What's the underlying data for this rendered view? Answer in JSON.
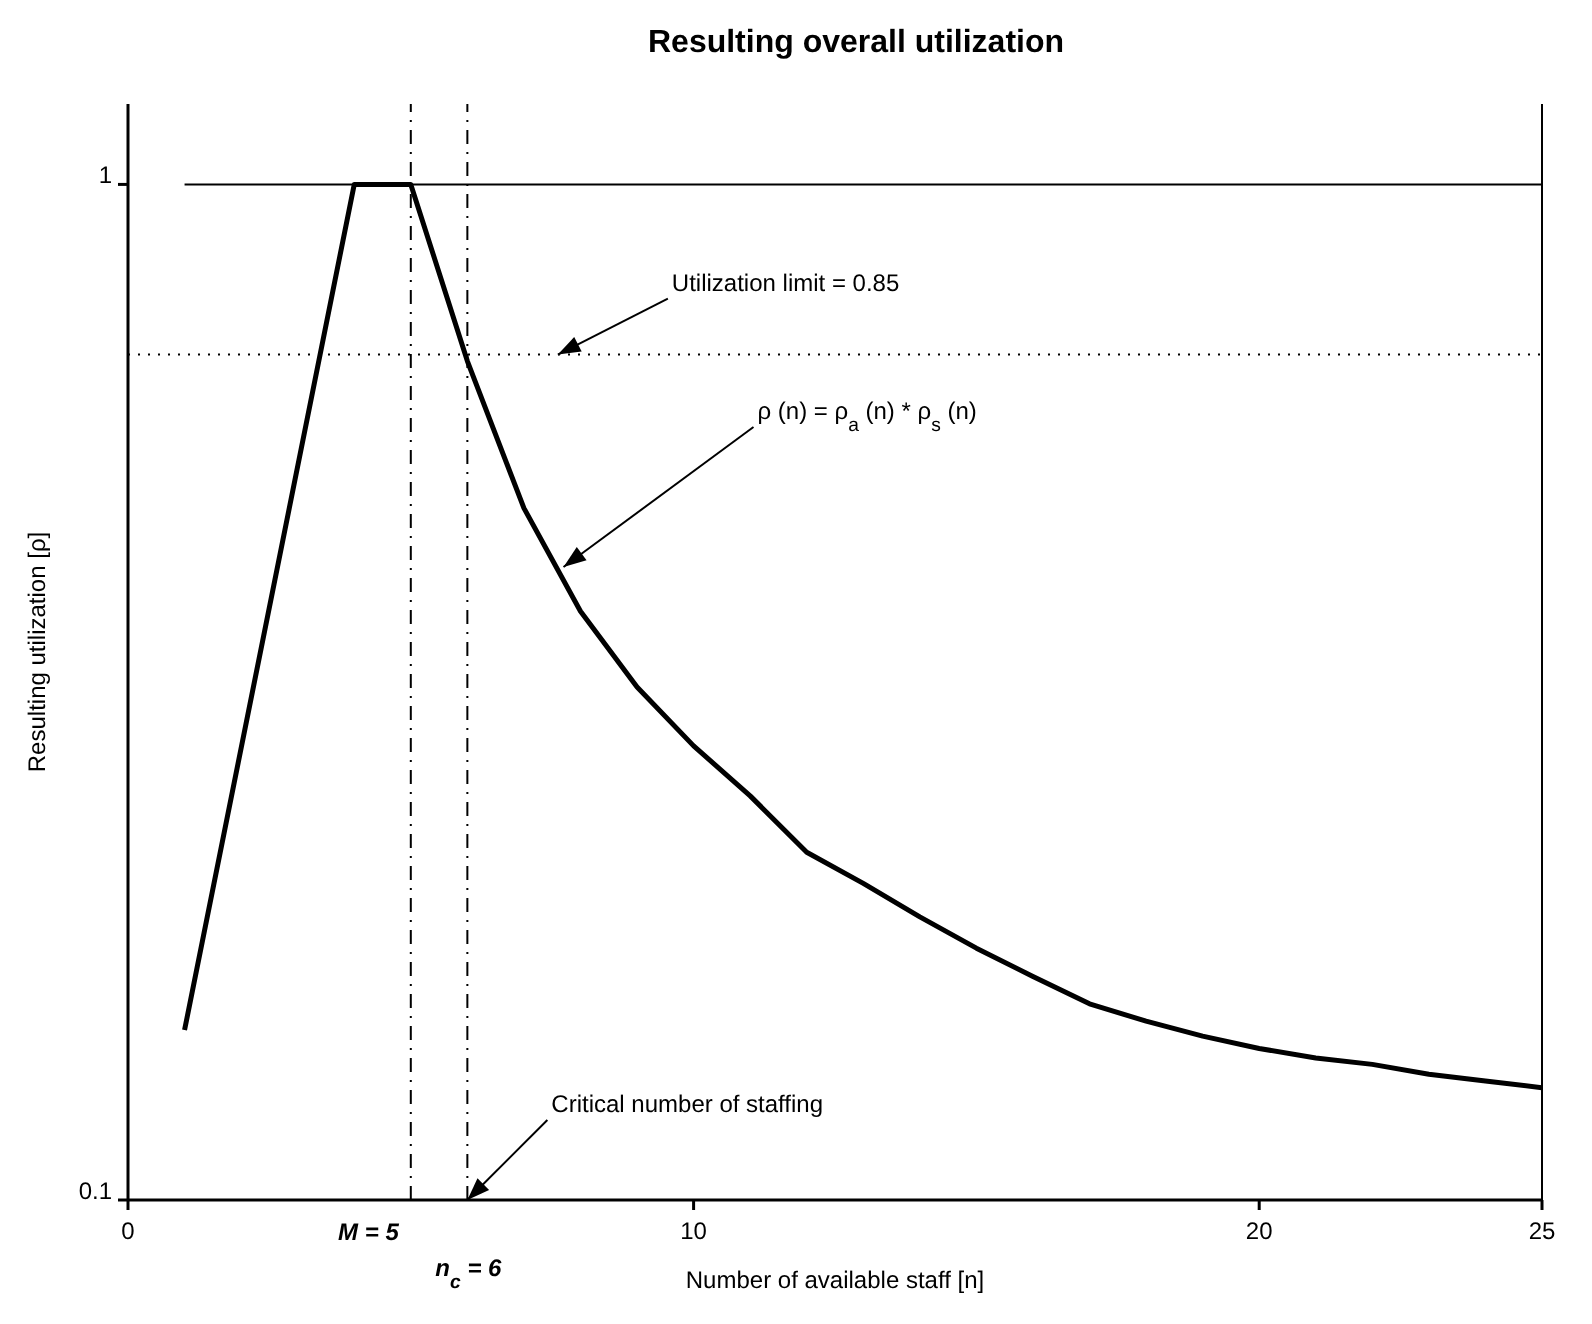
{
  "chart_data": {
    "type": "line",
    "title": "Resulting overall utilization",
    "xlabel": "Number of available staff  [n]",
    "ylabel": "Resulting utilization  [ρ]",
    "log": "y",
    "xlim": [
      0,
      25
    ],
    "xticks": [
      0,
      10,
      20,
      25
    ],
    "ylim": [
      0.1,
      1.2
    ],
    "yticks": [
      0.1,
      1
    ],
    "grid": false,
    "marker": "none",
    "series": [
      {
        "color": "#000000",
        "line_style": "solid",
        "x": [
          1,
          4,
          5,
          6,
          7,
          8,
          9,
          10,
          11,
          12,
          13,
          14,
          15,
          16,
          17,
          18,
          19,
          20,
          21,
          22,
          23,
          24,
          25
        ],
        "values": [
          0.147,
          1,
          1,
          0.67,
          0.48,
          0.38,
          0.32,
          0.28,
          0.25,
          0.22,
          0.205,
          0.19,
          0.177,
          0.166,
          0.156,
          0.15,
          0.145,
          0.141,
          0.138,
          0.136,
          0.133,
          0.131,
          0.129
        ]
      },
      {
        "color": "#000000",
        "line_style": "solid",
        "x": [
          1,
          25
        ],
        "values": [
          1,
          1
        ]
      }
    ],
    "ref_lines": [
      {
        "axis": "y",
        "value": 0.68,
        "line_style": "dotted",
        "color": "#000000"
      },
      {
        "axis": "x",
        "value": 5,
        "label": "M = 5",
        "line_style": "dashed",
        "color": "#000000"
      },
      {
        "axis": "x",
        "value": 6,
        "label": "n$_{c}$ = 6",
        "line_style": "dashed",
        "color": "#000000"
      }
    ],
    "annotations": [
      {
        "text": "Utilization limit = 0.85",
        "x": 7.6,
        "y": 0.68
      },
      {
        "text": "ρ (n) = ρ$_{a}$ (n) * ρ$_{s}$ (n)",
        "x": 7.7,
        "y": 0.42
      },
      {
        "text": "Critical number of staffing",
        "x": 6,
        "y": 0.1
      }
    ]
  }
}
